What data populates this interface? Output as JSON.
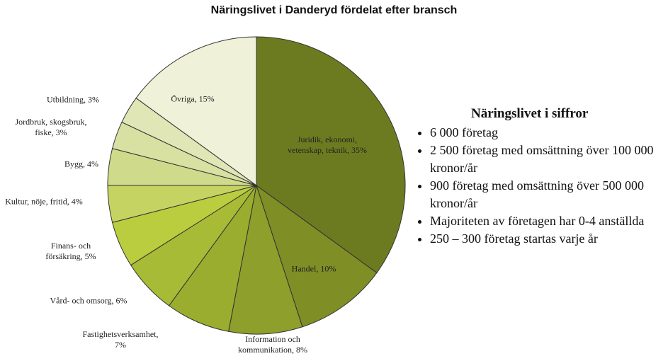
{
  "chart_data": {
    "type": "pie",
    "title": "Näringslivet i Danderyd fördelat efter bransch",
    "categories": [
      "Juridik, ekonomi, vetenskap, teknik,",
      "Handel,",
      "Information och kommunikation,",
      "Fastighetsverksamhet,",
      "Vård- och omsorg,",
      "Finans- och försäkring,",
      "Kultur, nöje, fritid,",
      "Bygg,",
      "Jordbruk, skogsbruk, fiske,",
      "Utbildning,",
      "Övriga,"
    ],
    "values": [
      35,
      10,
      8,
      7,
      6,
      5,
      4,
      4,
      3,
      3,
      15
    ],
    "value_labels": [
      "35%",
      "10%",
      "8%",
      "7%",
      "6%",
      "5%",
      "4%",
      "4%",
      "3%",
      "3%",
      "15%"
    ],
    "colors": [
      "#6d7b20",
      "#7f8e25",
      "#8e9f2b",
      "#9aad2f",
      "#a8bb36",
      "#bacd3e",
      "#c5d362",
      "#cfda8a",
      "#d8e0a2",
      "#e0e6b6",
      "#eff1d8"
    ]
  },
  "facts": {
    "title": "Näringslivet i siffror",
    "items": [
      "6 000 företag",
      "2 500 företag med omsättning över 100 000 kronor/år",
      "900 företag med omsättning över 500 000 kronor/år",
      "Majoriteten av företagen har 0-4 anställda",
      "250 – 300 företag startas varje år"
    ]
  }
}
